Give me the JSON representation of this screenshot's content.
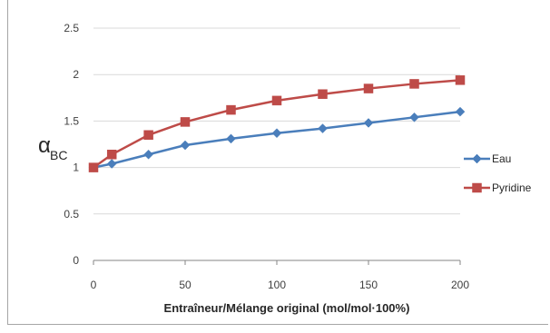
{
  "chart_data": {
    "type": "line",
    "title": "",
    "xlabel": "Entraîneur/Mélange original (mol/mol·100%)",
    "ylabel_main": "α",
    "ylabel_sub": "BC",
    "xlim": [
      0,
      200
    ],
    "ylim": [
      0,
      2.5
    ],
    "x_ticks": [
      0,
      50,
      100,
      150,
      200
    ],
    "y_ticks": [
      0,
      0.5,
      1,
      1.5,
      2,
      2.5
    ],
    "x_tick_labels": [
      "0",
      "50",
      "100",
      "150",
      "200"
    ],
    "y_tick_labels": [
      "0",
      "0.5",
      "1",
      "1.5",
      "2",
      "2.5"
    ],
    "grid": "horizontal",
    "legend_position": "right",
    "series": [
      {
        "name": "Eau",
        "color": "#4a7ebb",
        "marker": "diamond",
        "points": [
          [
            0,
            1.0
          ],
          [
            10,
            1.04
          ],
          [
            30,
            1.14
          ],
          [
            50,
            1.24
          ],
          [
            75,
            1.31
          ],
          [
            100,
            1.37
          ],
          [
            125,
            1.42
          ],
          [
            150,
            1.48
          ],
          [
            175,
            1.54
          ],
          [
            200,
            1.6
          ]
        ]
      },
      {
        "name": "Pyridine",
        "color": "#be4b48",
        "marker": "square",
        "points": [
          [
            0,
            1.0
          ],
          [
            10,
            1.14
          ],
          [
            30,
            1.35
          ],
          [
            50,
            1.49
          ],
          [
            75,
            1.62
          ],
          [
            100,
            1.72
          ],
          [
            125,
            1.79
          ],
          [
            150,
            1.85
          ],
          [
            175,
            1.9
          ],
          [
            200,
            1.94
          ]
        ]
      }
    ]
  }
}
